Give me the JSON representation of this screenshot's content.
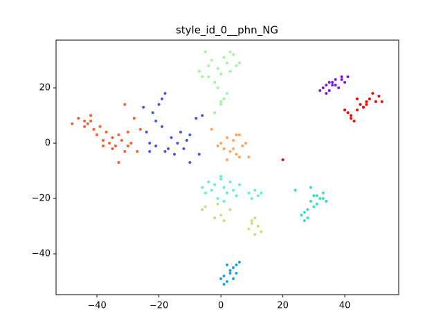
{
  "chart_data": {
    "type": "scatter",
    "title": "style_id_0__phn_NG",
    "xlim": [
      -53.2,
      57.4
    ],
    "ylim": [
      -54.75,
      37.25
    ],
    "xticks": [
      {
        "value": -40,
        "label": "−40"
      },
      {
        "value": -20,
        "label": "−20"
      },
      0,
      20,
      40
    ],
    "yticks": [
      {
        "value": -40,
        "label": "−40"
      },
      {
        "value": -20,
        "label": "−20"
      },
      0,
      20
    ],
    "grid": false,
    "series": [
      {
        "color": "#ff5b2e",
        "x": [
          -48,
          -46,
          -44,
          -43,
          -42,
          -41,
          -40,
          -38,
          -37,
          -36,
          -35,
          -34,
          -33,
          -32,
          -31,
          -30,
          -29,
          -28,
          -27,
          -26,
          -42,
          -39,
          -35,
          -31,
          -33,
          -38,
          -44,
          -30
        ],
        "values": [
          7,
          9,
          8,
          7,
          10,
          5,
          3,
          1,
          4,
          0,
          2,
          -1,
          3,
          1,
          -3,
          -1,
          0,
          9,
          -3,
          5,
          8,
          6,
          -2,
          14,
          -7,
          -1,
          6,
          4
        ]
      },
      {
        "color": "#4455e8",
        "x": [
          -25,
          -24,
          -23,
          -22,
          -21,
          -20,
          -19,
          -18,
          -17,
          -16,
          -15,
          -14,
          -13,
          -12,
          -11,
          -10,
          -8,
          -7,
          -6,
          -19,
          -21,
          -23,
          -18,
          -10
        ],
        "values": [
          13,
          4,
          0,
          11,
          -1,
          14,
          6,
          18,
          -2,
          2,
          -4,
          0,
          4,
          -2,
          1,
          -7,
          9,
          -4,
          10,
          16,
          8,
          -3,
          -3,
          3
        ]
      },
      {
        "color": "#9cf89c",
        "x": [
          -7,
          -6,
          -5,
          -4,
          -3,
          -2,
          -1,
          0,
          1,
          2,
          3,
          4,
          5,
          6,
          -4,
          0,
          2,
          -1,
          0,
          1,
          -2,
          3
        ],
        "values": [
          26,
          24,
          33,
          28,
          30,
          22,
          27,
          25,
          31,
          29,
          26,
          32,
          28,
          29,
          24,
          15,
          18,
          20,
          14,
          16,
          11,
          33
        ]
      },
      {
        "color": "#ffa45c",
        "x": [
          -1,
          0,
          1,
          2,
          3,
          4,
          5,
          6,
          7,
          8,
          9,
          2,
          4,
          6,
          -3,
          5
        ],
        "values": [
          -1,
          0,
          -2,
          2,
          -3,
          1,
          -4,
          3,
          -1,
          0,
          -5,
          -6,
          -2,
          -5,
          5,
          3
        ]
      },
      {
        "color": "#5cf5c4",
        "x": [
          -6,
          -5,
          -4,
          -3,
          -2,
          -1,
          0,
          1,
          2,
          3,
          4,
          5,
          6,
          9,
          10,
          11,
          12,
          13,
          0,
          1
        ],
        "values": [
          -16,
          -18,
          -14,
          -17,
          -15,
          -20,
          -13,
          -16,
          -18,
          -14,
          -17,
          -19,
          -15,
          -18,
          -20,
          -17,
          -19,
          -18,
          -12,
          -21
        ]
      },
      {
        "color": "#c8e07a",
        "x": [
          -6,
          -5,
          -2,
          -1,
          0,
          1,
          3,
          9,
          10,
          11,
          12,
          13,
          10,
          11
        ],
        "values": [
          -24,
          -23,
          -27,
          -22,
          -26,
          -28,
          -24,
          -31,
          -29,
          -27,
          -30,
          -32,
          -28,
          -33
        ]
      },
      {
        "color": "#1fa0e6",
        "x": [
          0,
          1,
          2,
          3,
          4,
          5,
          6,
          1,
          2,
          3,
          4,
          5
        ],
        "values": [
          -49,
          -51,
          -50,
          -47,
          -45,
          -44,
          -43,
          -48,
          -44,
          -46,
          -49,
          -47
        ]
      },
      {
        "color": "#33ddc9",
        "x": [
          24,
          26,
          27,
          28,
          29,
          30,
          31,
          32,
          33,
          34,
          27,
          28,
          29,
          30,
          31,
          33
        ],
        "values": [
          -17,
          -26,
          -28,
          -24,
          -21,
          -19,
          -22,
          -20,
          -18,
          -21,
          -25,
          -27,
          -16,
          -23,
          -19,
          -20
        ]
      },
      {
        "color": "#7b1ae6",
        "x": [
          32,
          33,
          34,
          35,
          36,
          37,
          38,
          39,
          40,
          41,
          35,
          37,
          39,
          34,
          36
        ],
        "values": [
          19,
          20,
          18,
          22,
          21,
          23,
          20,
          24,
          22,
          24,
          19,
          21,
          23,
          21,
          22
        ]
      },
      {
        "color": "#ff0000",
        "x": [
          40,
          41,
          42,
          43,
          44,
          45,
          46,
          47,
          48,
          49,
          50,
          51,
          52,
          46,
          47,
          44,
          42,
          20
        ],
        "values": [
          12,
          11,
          10,
          8,
          12,
          14,
          13,
          15,
          16,
          18,
          15,
          17,
          15,
          13,
          14,
          16,
          9,
          -6
        ]
      }
    ]
  }
}
